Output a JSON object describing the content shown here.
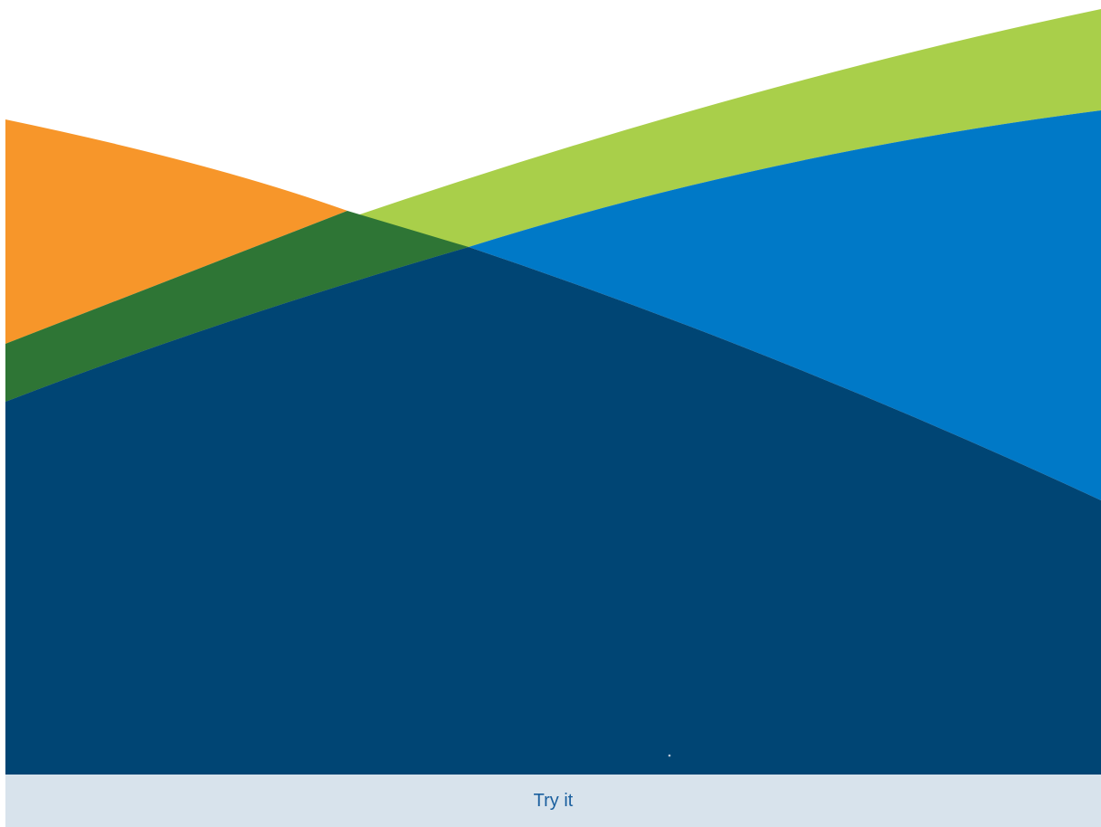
{
  "colors": {
    "background": "#ffffff",
    "orange": "#f7962a",
    "green": "#a9cf4a",
    "dark_green": "#2e7535",
    "blue": "#0079c7",
    "navy": "#004574",
    "footer_bg": "#d8e3ec",
    "button_text": "#1a5f9e"
  },
  "footer": {
    "button_label": "Try it"
  }
}
